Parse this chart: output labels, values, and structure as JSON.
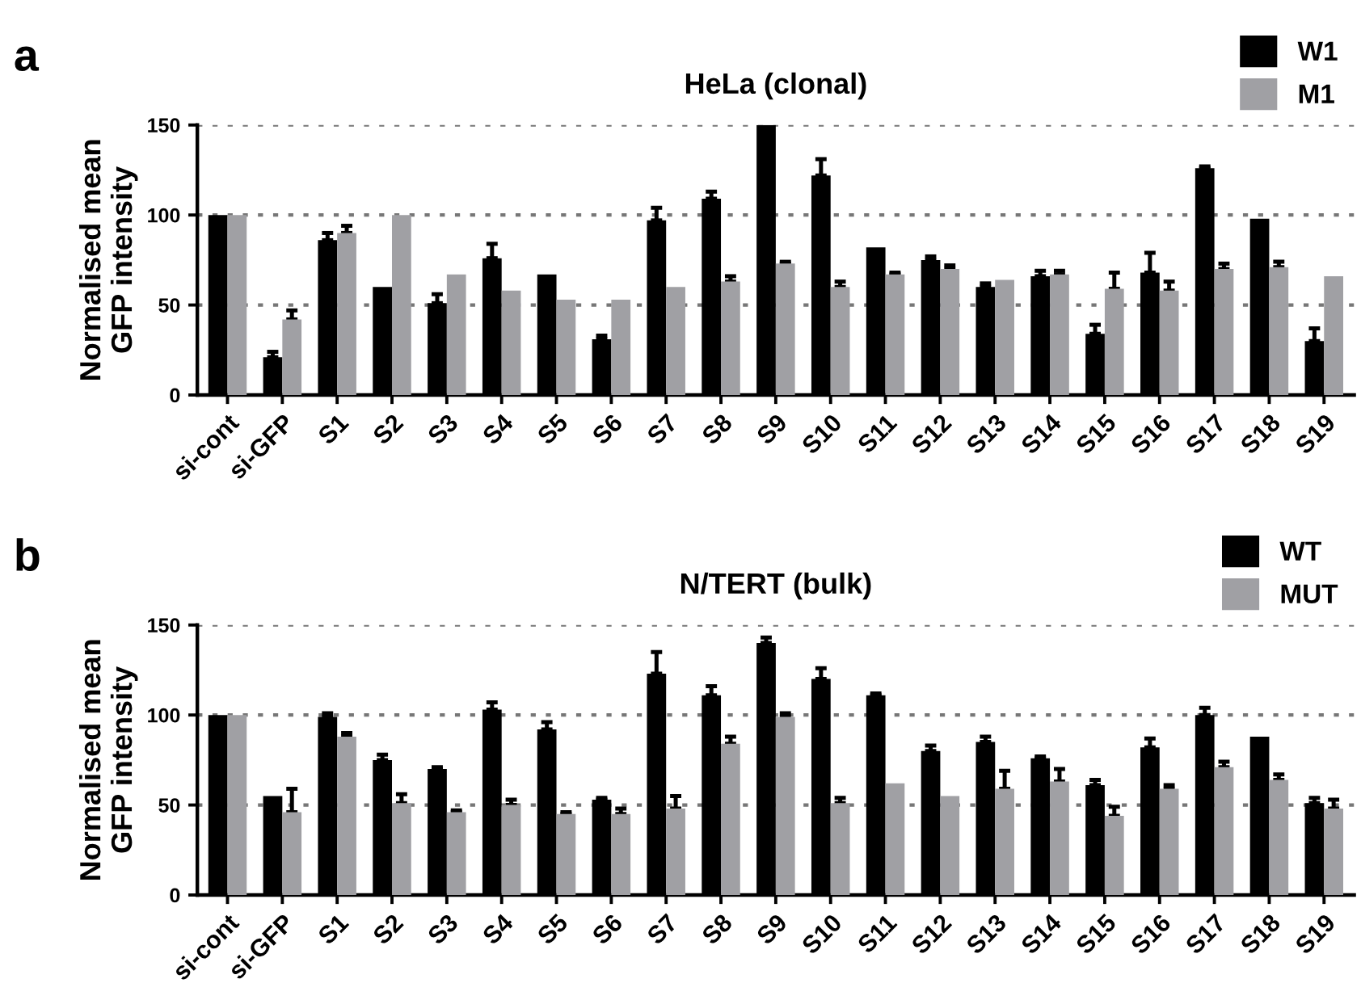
{
  "chart_data": [
    {
      "type": "bar",
      "title": "HeLa (clonal)",
      "ylabel": "Normalised mean\nGFP intensity",
      "annotations": [
        "a"
      ],
      "categories": [
        "si-cont",
        "si-GFP",
        "S1",
        "S2",
        "S3",
        "S4",
        "S5",
        "S6",
        "S7",
        "S8",
        "S9",
        "S10",
        "S11",
        "S12",
        "S13",
        "S14",
        "S15",
        "S16",
        "S17",
        "S18",
        "S19"
      ],
      "series": [
        {
          "name": "W1",
          "color": "#000000",
          "values": [
            100,
            21,
            86,
            60,
            51,
            76,
            67,
            31,
            97,
            109,
            150,
            122,
            82,
            75,
            60,
            66,
            34,
            68,
            126,
            98,
            30
          ],
          "errors": [
            null,
            3,
            4,
            null,
            5,
            8,
            null,
            2,
            7,
            4,
            null,
            9,
            null,
            2,
            2,
            3,
            5,
            11,
            1,
            null,
            7
          ]
        },
        {
          "name": "M1",
          "color": "#a0a0a4",
          "values": [
            100,
            42,
            90,
            100,
            67,
            58,
            53,
            53,
            60,
            63,
            73,
            60,
            67,
            70,
            64,
            67,
            59,
            58,
            70,
            71,
            66
          ],
          "errors": [
            null,
            5,
            4,
            null,
            null,
            null,
            null,
            null,
            null,
            3,
            1,
            3,
            1,
            2,
            null,
            2,
            9,
            5,
            3,
            3,
            null
          ]
        }
      ],
      "ylim": [
        0,
        150
      ],
      "yticks": [
        0,
        50,
        100,
        150
      ],
      "grid": "y",
      "legend": "top right"
    },
    {
      "type": "bar",
      "title": "N/TERT (bulk)",
      "ylabel": "Normalised mean\nGFP intensity",
      "annotations": [
        "b"
      ],
      "categories": [
        "si-cont",
        "si-GFP",
        "S1",
        "S2",
        "S3",
        "S4",
        "S5",
        "S6",
        "S7",
        "S8",
        "S9",
        "S10",
        "S11",
        "S12",
        "S13",
        "S14",
        "S15",
        "S16",
        "S17",
        "S18",
        "S19"
      ],
      "series": [
        {
          "name": "WT",
          "color": "#000000",
          "values": [
            100,
            55,
            99,
            75,
            70,
            103,
            92,
            53,
            123,
            111,
            140,
            120,
            111,
            80,
            85,
            76,
            61,
            82,
            100,
            88,
            51
          ],
          "errors": [
            null,
            null,
            2,
            3,
            1,
            4,
            4,
            1,
            12,
            5,
            3,
            6,
            1,
            3,
            3,
            1,
            3,
            5,
            4,
            null,
            3
          ]
        },
        {
          "name": "MUT",
          "color": "#a0a0a4",
          "values": [
            100,
            46,
            88,
            51,
            46,
            50,
            45,
            45,
            48,
            84,
            99,
            51,
            62,
            55,
            59,
            63,
            44,
            59,
            71,
            64,
            48
          ],
          "errors": [
            null,
            13,
            2,
            5,
            1,
            3,
            1,
            3,
            7,
            4,
            2,
            3,
            null,
            null,
            10,
            7,
            5,
            2,
            3,
            3,
            5
          ]
        }
      ],
      "ylim": [
        0,
        150
      ],
      "yticks": [
        0,
        50,
        100,
        150
      ],
      "grid": "y",
      "legend": "top right"
    }
  ]
}
